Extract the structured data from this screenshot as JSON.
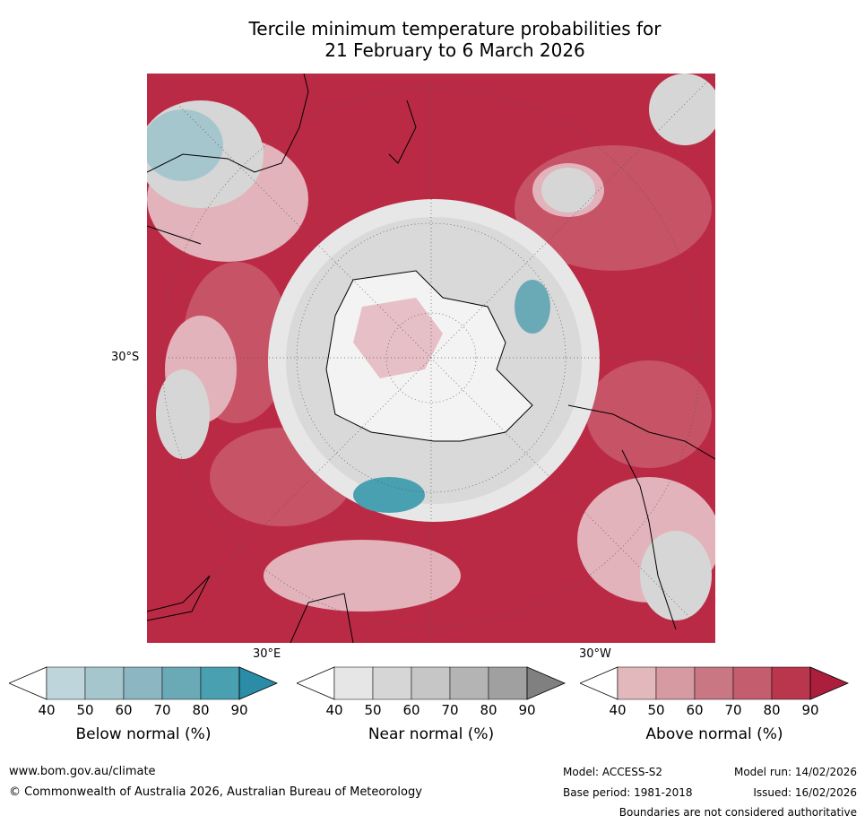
{
  "title": {
    "line1": "Tercile minimum temperature probabilities for",
    "line2": "21 February to 6 March 2026"
  },
  "map": {
    "projection": "south polar stereographic",
    "lat_label": "30°S",
    "lon_label_east": "30°E",
    "lon_label_west": "30°W"
  },
  "colorbars": [
    {
      "label": "Below normal (%)",
      "ticks": [
        "40",
        "50",
        "60",
        "70",
        "80",
        "90"
      ],
      "colors": [
        "#bed5dc",
        "#a6c6cd",
        "#8cb6c2",
        "#6aaab6",
        "#48a0b0",
        "#2a8ca6"
      ]
    },
    {
      "label": "Near normal (%)",
      "ticks": [
        "40",
        "50",
        "60",
        "70",
        "80",
        "90"
      ],
      "colors": [
        "#e6e6e6",
        "#d6d6d6",
        "#c6c6c6",
        "#b4b4b4",
        "#a0a0a0",
        "#808080"
      ]
    },
    {
      "label": "Above normal (%)",
      "ticks": [
        "40",
        "50",
        "60",
        "70",
        "80",
        "90"
      ],
      "colors": [
        "#e2b8bd",
        "#d59aa2",
        "#c97883",
        "#c45d6d",
        "#b9364d",
        "#ab1e3c"
      ]
    }
  ],
  "footer": {
    "website": "www.bom.gov.au/climate",
    "copyright": "© Commonwealth of Australia 2026, Australian Bureau of Meteorology",
    "model": "Model: ACCESS-S2",
    "model_run": "Model run: 14/02/2026",
    "base_period": "Base period: 1981-2018",
    "issued": "Issued: 16/02/2026",
    "disclaimer": "Boundaries are not considered authoritative"
  }
}
